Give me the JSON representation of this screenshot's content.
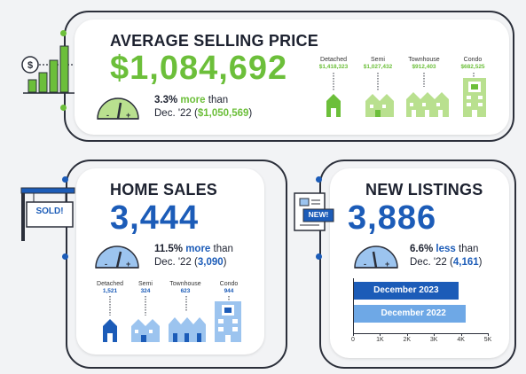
{
  "colors": {
    "green": "#6cbf3a",
    "blue": "#1c5cb8",
    "lightblue": "#6ea8e6",
    "dark": "#2b2f3a"
  },
  "avg": {
    "title": "AVERAGE SELLING PRICE",
    "value": "$1,084,692",
    "change_pct": "3.3%",
    "change_word": "more",
    "than": "than",
    "prev_prefix": "Dec. '22 (",
    "prev_value": "$1,050,569",
    "prev_suffix": ")",
    "types": [
      {
        "label": "Detached",
        "value": "$1,418,323"
      },
      {
        "label": "Semi",
        "value": "$1,027,432"
      },
      {
        "label": "Townhouse",
        "value": "$912,403"
      },
      {
        "label": "Condo",
        "value": "$682,525"
      }
    ]
  },
  "sales": {
    "title": "HOME SALES",
    "sign": "SOLD!",
    "value": "3,444",
    "change_pct": "11.5%",
    "change_word": "more",
    "than": "than",
    "prev_prefix": "Dec. '22 (",
    "prev_value": "3,090",
    "prev_suffix": ")",
    "types": [
      {
        "label": "Detached",
        "value": "1,521"
      },
      {
        "label": "Semi",
        "value": "324"
      },
      {
        "label": "Townhouse",
        "value": "623"
      },
      {
        "label": "Condo",
        "value": "944"
      }
    ]
  },
  "listings": {
    "title": "NEW LISTINGS",
    "sign": "NEW!",
    "value": "3,886",
    "change_pct": "6.6%",
    "change_word": "less",
    "than": "than",
    "prev_prefix": "Dec. '22 (",
    "prev_value": "4,161",
    "prev_suffix": ")"
  },
  "chart_data": {
    "type": "bar",
    "orientation": "horizontal",
    "categories": [
      "December 2023",
      "December 2022"
    ],
    "values": [
      3886,
      4161
    ],
    "xlim": [
      0,
      5000
    ],
    "ticks": [
      "0",
      "1K",
      "2K",
      "3K",
      "4K",
      "5K"
    ],
    "colors": [
      "#1c5cb8",
      "#6ea8e6"
    ]
  }
}
